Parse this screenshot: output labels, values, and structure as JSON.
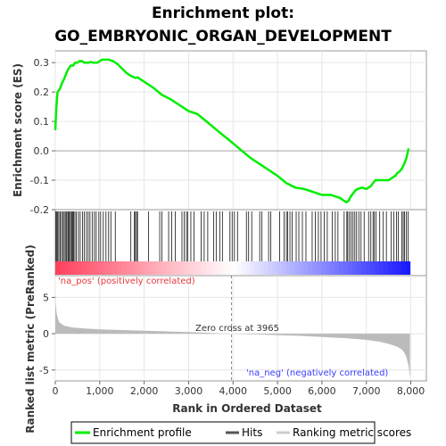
{
  "chart_data": {
    "type": "line",
    "title_line1": "Enrichment plot:",
    "title_line2": "GO_EMBRYONIC_ORGAN_DEVELOPMENT",
    "top_panel": {
      "ylabel": "Enrichment score (ES)",
      "ylim": [
        -0.2,
        0.34
      ],
      "yticks": [
        "0.3",
        "0.2",
        "0.1",
        "0.0",
        "-0.1",
        "-0.2"
      ],
      "series": [
        {
          "name": "Enrichment profile",
          "color": "#00ee00",
          "x": [
            0,
            20,
            50,
            100,
            150,
            200,
            250,
            300,
            350,
            400,
            450,
            500,
            550,
            600,
            650,
            700,
            750,
            800,
            850,
            900,
            950,
            1000,
            1050,
            1100,
            1150,
            1200,
            1300,
            1400,
            1500,
            1600,
            1700,
            1800,
            1850,
            1900,
            2000,
            2200,
            2400,
            2600,
            2800,
            3000,
            3200,
            3400,
            3600,
            3800,
            3965,
            4200,
            4400,
            4600,
            4800,
            5000,
            5200,
            5400,
            5600,
            5800,
            6000,
            6200,
            6300,
            6400,
            6500,
            6550,
            6600,
            6650,
            6700,
            6750,
            6800,
            6900,
            7000,
            7050,
            7100,
            7150,
            7200,
            7300,
            7400,
            7500,
            7600,
            7650,
            7700,
            7750,
            7800,
            7850,
            7900,
            7950
          ],
          "values": [
            0.07,
            0.14,
            0.2,
            0.21,
            0.23,
            0.245,
            0.265,
            0.28,
            0.29,
            0.29,
            0.3,
            0.3,
            0.305,
            0.305,
            0.3,
            0.3,
            0.3,
            0.302,
            0.3,
            0.3,
            0.3,
            0.305,
            0.31,
            0.31,
            0.31,
            0.31,
            0.305,
            0.295,
            0.28,
            0.265,
            0.255,
            0.248,
            0.25,
            0.245,
            0.235,
            0.215,
            0.19,
            0.175,
            0.155,
            0.135,
            0.125,
            0.1,
            0.075,
            0.05,
            0.03,
            0.0,
            -0.025,
            -0.045,
            -0.065,
            -0.085,
            -0.11,
            -0.125,
            -0.13,
            -0.14,
            -0.15,
            -0.15,
            -0.155,
            -0.16,
            -0.17,
            -0.175,
            -0.17,
            -0.155,
            -0.145,
            -0.135,
            -0.13,
            -0.125,
            -0.13,
            -0.125,
            -0.12,
            -0.11,
            -0.1,
            -0.1,
            -0.1,
            -0.1,
            -0.09,
            -0.085,
            -0.075,
            -0.07,
            -0.06,
            -0.045,
            -0.025,
            0.008
          ]
        }
      ]
    },
    "bottom_panel": {
      "ylabel": "Ranked list metric (PreRanked)",
      "xlabel": "Rank in Ordered Dataset",
      "xlim": [
        0,
        8350
      ],
      "ylim": [
        -6.5,
        8
      ],
      "yticks": [
        "5",
        "0",
        "-5"
      ],
      "xticks": [
        "0",
        "1,000",
        "2,000",
        "3,000",
        "4,000",
        "5,000",
        "6,000",
        "7,000",
        "8,000"
      ],
      "series_name": "Ranking metric scores",
      "color": "#bbbbbb",
      "metric_x": [
        0,
        10,
        30,
        60,
        100,
        200,
        400,
        700,
        1000,
        1500,
        2000,
        2500,
        3000,
        3500,
        3965,
        4500,
        5000,
        5500,
        6000,
        6500,
        7000,
        7300,
        7500,
        7700,
        7800,
        7850,
        7900,
        7950,
        7980
      ],
      "metric_y": [
        5.5,
        4.0,
        2.8,
        2.0,
        1.5,
        1.1,
        0.85,
        0.7,
        0.6,
        0.5,
        0.4,
        0.32,
        0.22,
        0.1,
        0.0,
        -0.1,
        -0.2,
        -0.3,
        -0.45,
        -0.6,
        -0.85,
        -1.1,
        -1.4,
        -1.8,
        -2.2,
        -2.6,
        -3.2,
        -4.5,
        -6.0
      ]
    },
    "hits": [
      15,
      35,
      55,
      80,
      110,
      140,
      170,
      200,
      225,
      250,
      280,
      300,
      320,
      345,
      370,
      390,
      410,
      440,
      470,
      520,
      560,
      610,
      650,
      700,
      740,
      780,
      830,
      880,
      920,
      980,
      1020,
      1080,
      1140,
      1200,
      1250,
      1350,
      1700,
      1780,
      1800,
      1830,
      1850,
      2100,
      2350,
      2400,
      2550,
      2620,
      2700,
      2850,
      2900,
      2950,
      2980,
      3050,
      3120,
      3280,
      3350,
      3430,
      3560,
      3620,
      3700,
      3760,
      3930,
      3980,
      4030,
      4100,
      4300,
      4350,
      4420,
      4600,
      4650,
      4800,
      4850,
      5050,
      5150,
      5200,
      5230,
      5280,
      5330,
      5420,
      5480,
      5560,
      5640,
      5780,
      5850,
      5920,
      5980,
      6050,
      6120,
      6230,
      6300,
      6360,
      6500,
      6560,
      6580,
      6620,
      6660,
      6700,
      6740,
      6780,
      6830,
      6880,
      6950,
      7050,
      7100,
      7150,
      7180,
      7220,
      7300,
      7380,
      7450,
      7560,
      7620,
      7680,
      7720,
      7800,
      7830,
      7860,
      7900,
      7940
    ],
    "annotations": {
      "pos_label": "'na_pos' (positively correlated)",
      "neg_label": "'na_neg' (negatively correlated)",
      "zero_cross": "Zero cross at 3965",
      "zero_cross_rank": 3965
    },
    "legend": {
      "enrichment": "Enrichment profile",
      "hits": "Hits",
      "ranking": "Ranking metric scores"
    }
  }
}
